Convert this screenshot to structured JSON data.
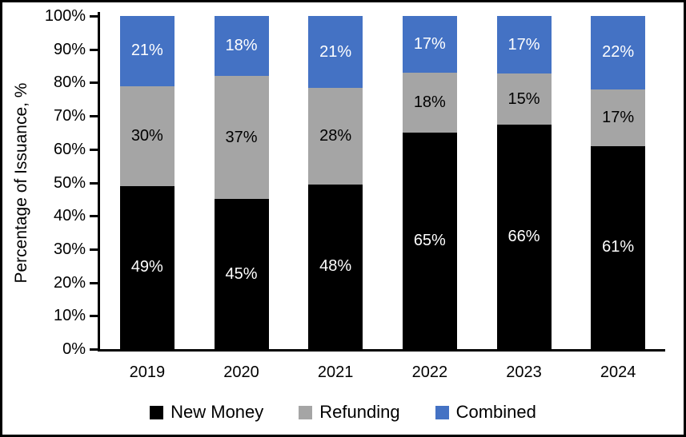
{
  "chart_data": {
    "type": "bar",
    "stacked": true,
    "title": "",
    "xlabel": "",
    "ylabel": "Percentage of Issuance, %",
    "categories": [
      "2019",
      "2020",
      "2021",
      "2022",
      "2023",
      "2024"
    ],
    "series": [
      {
        "name": "New Money",
        "color": "#000000",
        "label_color": "#ffffff",
        "values": [
          49,
          45,
          48,
          65,
          66,
          61
        ]
      },
      {
        "name": "Refunding",
        "color": "#A5A5A5",
        "label_color": "#000000",
        "values": [
          30,
          37,
          28,
          18,
          15,
          17
        ]
      },
      {
        "name": "Combined",
        "color": "#4472C4",
        "label_color": "#ffffff",
        "values": [
          21,
          18,
          21,
          17,
          17,
          22
        ]
      }
    ],
    "value_label_suffix": "%",
    "y_ticks": [
      "0%",
      "10%",
      "20%",
      "30%",
      "40%",
      "50%",
      "60%",
      "70%",
      "80%",
      "90%",
      "100%"
    ],
    "ylim": [
      0,
      100
    ],
    "grid": false,
    "legend_position": "bottom",
    "axis_color": "#000000",
    "background_color": "#ffffff"
  }
}
